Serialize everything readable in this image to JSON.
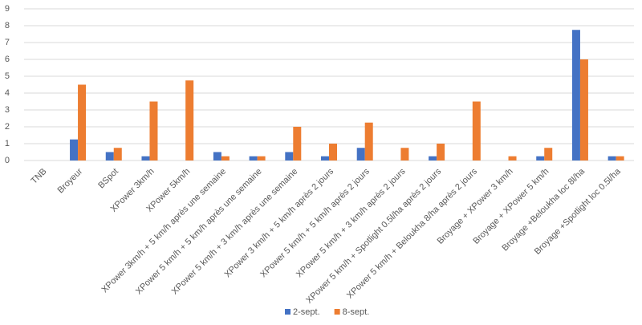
{
  "chart_data": {
    "type": "bar",
    "categories": [
      "TNB",
      "Broyeur",
      "BSpot",
      "XPower 3km/h",
      "XPower 5km/h",
      "XPower 3km/h + 5 km/h après une semaine",
      "XPower 5 km/h + 5 km/h après une semaine",
      "XPower 5 km/h + 3 km/h après une semaine",
      "XPower 3 km/h + 5 km/h après 2 jours",
      "XPower 5 km/h + 5 km/h après 2 jours",
      "XPower 5 km/h + 3 km/h après 2 jours",
      "XPower 5 km/h + Spotlight 0.5l/ha après 2 jours",
      "XPower 5 km/h + Beloukha 8/ha après 2 jours",
      "Broyage + XPower 3 km/h",
      "Broyage + XPower 5 km/h",
      "Broyage +Beloukha loc 8l/ha",
      "Broyage +Spotlight loc 0.5l/ha"
    ],
    "series": [
      {
        "name": "2-sept.",
        "color": "#4472c4",
        "values": [
          0,
          1.25,
          0.5,
          0.25,
          0,
          0.5,
          0.25,
          0.5,
          0.25,
          0.75,
          0,
          0.25,
          0,
          0,
          0.25,
          7.75,
          0.25
        ]
      },
      {
        "name": "8-sept.",
        "color": "#ed7d31",
        "values": [
          0,
          4.5,
          0.75,
          3.5,
          4.75,
          0.25,
          0.25,
          2,
          1,
          2.25,
          0.75,
          1,
          3.5,
          0.25,
          0.75,
          6,
          0.25
        ]
      }
    ],
    "ylim": [
      0,
      9
    ],
    "yticks": [
      0,
      1,
      2,
      3,
      4,
      5,
      6,
      7,
      8,
      9
    ],
    "grid": true,
    "legend": "bottom"
  }
}
